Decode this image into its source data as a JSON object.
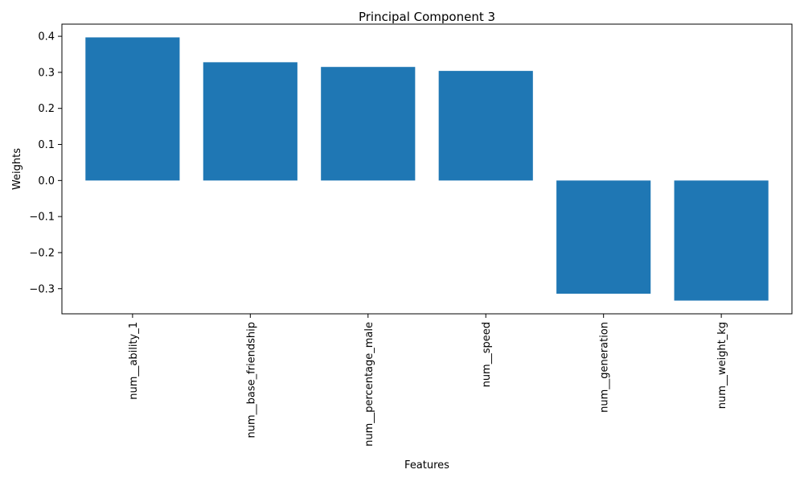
{
  "chart_data": {
    "type": "bar",
    "title": "Principal Component 3",
    "xlabel": "Features",
    "ylabel": "Weights",
    "categories": [
      "num__ability_1",
      "num__base_friendship",
      "num__percentage_male",
      "num__speed",
      "num__generation",
      "num__weight_kg"
    ],
    "values": [
      0.397,
      0.328,
      0.315,
      0.304,
      -0.314,
      -0.333
    ],
    "ylim": [
      -0.3697,
      0.4337
    ],
    "yticks": [
      0.4,
      0.3,
      0.2,
      0.1,
      0.0,
      -0.1,
      -0.2,
      -0.3
    ],
    "ytick_labels": [
      "0.4",
      "0.3",
      "0.2",
      "0.1",
      "0.0",
      "−0.1",
      "−0.2",
      "−0.3"
    ],
    "bar_color": "#1f77b4",
    "grid": false,
    "xtick_rotation": "vertical"
  }
}
